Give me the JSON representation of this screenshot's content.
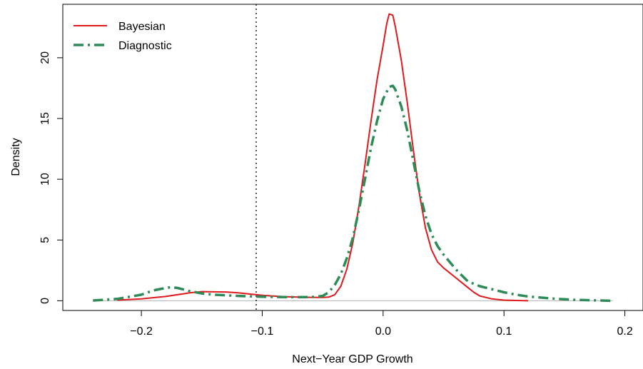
{
  "chart_data": {
    "type": "line",
    "title": "",
    "xlabel": "Next−Year GDP Growth",
    "ylabel": "Density",
    "xlim": [
      -0.265,
      0.215
    ],
    "ylim": [
      -0.8,
      24.4
    ],
    "x_ticks": [
      -0.2,
      -0.1,
      0.0,
      0.1,
      0.2
    ],
    "x_tick_labels": [
      "−0.2",
      "−0.1",
      "0.0",
      "0.1",
      "0.2"
    ],
    "y_ticks": [
      0,
      5,
      10,
      15,
      20
    ],
    "y_tick_labels": [
      "0",
      "5",
      "10",
      "15",
      "20"
    ],
    "grid": false,
    "legend_position": "top-left",
    "reference_lines": {
      "vertical_x": -0.105,
      "horizontal_y": 0
    },
    "colors": {
      "bayesian": "#e0191c",
      "diagnostic": "#2e8b57",
      "baseline": "#b3b3b3"
    },
    "series": [
      {
        "name": "Bayesian",
        "style": "solid",
        "points": [
          [
            -0.22,
            0.05
          ],
          [
            -0.2,
            0.15
          ],
          [
            -0.18,
            0.35
          ],
          [
            -0.16,
            0.65
          ],
          [
            -0.15,
            0.75
          ],
          [
            -0.13,
            0.72
          ],
          [
            -0.12,
            0.65
          ],
          [
            -0.11,
            0.55
          ],
          [
            -0.1,
            0.45
          ],
          [
            -0.09,
            0.38
          ],
          [
            -0.08,
            0.33
          ],
          [
            -0.07,
            0.3
          ],
          [
            -0.06,
            0.28
          ],
          [
            -0.05,
            0.27
          ],
          [
            -0.045,
            0.3
          ],
          [
            -0.04,
            0.5
          ],
          [
            -0.035,
            1.2
          ],
          [
            -0.03,
            2.6
          ],
          [
            -0.025,
            4.8
          ],
          [
            -0.02,
            7.8
          ],
          [
            -0.015,
            11.2
          ],
          [
            -0.01,
            14.8
          ],
          [
            -0.005,
            18.2
          ],
          [
            0.0,
            21.0
          ],
          [
            0.003,
            22.8
          ],
          [
            0.005,
            23.6
          ],
          [
            0.008,
            23.5
          ],
          [
            0.01,
            22.6
          ],
          [
            0.015,
            19.8
          ],
          [
            0.02,
            16.3
          ],
          [
            0.025,
            12.4
          ],
          [
            0.03,
            8.8
          ],
          [
            0.035,
            6.0
          ],
          [
            0.04,
            4.2
          ],
          [
            0.045,
            3.2
          ],
          [
            0.05,
            2.7
          ],
          [
            0.055,
            2.3
          ],
          [
            0.06,
            1.9
          ],
          [
            0.065,
            1.5
          ],
          [
            0.07,
            1.1
          ],
          [
            0.075,
            0.7
          ],
          [
            0.08,
            0.4
          ],
          [
            0.09,
            0.15
          ],
          [
            0.1,
            0.05
          ],
          [
            0.11,
            0.02
          ],
          [
            0.12,
            0.0
          ]
        ]
      },
      {
        "name": "Diagnostic",
        "style": "dotdash",
        "points": [
          [
            -0.24,
            0.02
          ],
          [
            -0.22,
            0.15
          ],
          [
            -0.2,
            0.5
          ],
          [
            -0.19,
            0.85
          ],
          [
            -0.18,
            1.05
          ],
          [
            -0.175,
            1.12
          ],
          [
            -0.17,
            1.05
          ],
          [
            -0.16,
            0.8
          ],
          [
            -0.15,
            0.6
          ],
          [
            -0.14,
            0.5
          ],
          [
            -0.12,
            0.4
          ],
          [
            -0.1,
            0.33
          ],
          [
            -0.08,
            0.3
          ],
          [
            -0.06,
            0.3
          ],
          [
            -0.05,
            0.4
          ],
          [
            -0.045,
            0.7
          ],
          [
            -0.04,
            1.3
          ],
          [
            -0.035,
            2.2
          ],
          [
            -0.03,
            3.5
          ],
          [
            -0.025,
            5.2
          ],
          [
            -0.02,
            7.5
          ],
          [
            -0.015,
            10.0
          ],
          [
            -0.01,
            12.6
          ],
          [
            -0.005,
            14.8
          ],
          [
            0.0,
            16.6
          ],
          [
            0.005,
            17.6
          ],
          [
            0.008,
            17.7
          ],
          [
            0.01,
            17.4
          ],
          [
            0.015,
            16.0
          ],
          [
            0.02,
            14.0
          ],
          [
            0.025,
            11.5
          ],
          [
            0.03,
            9.0
          ],
          [
            0.035,
            7.0
          ],
          [
            0.04,
            5.5
          ],
          [
            0.045,
            4.5
          ],
          [
            0.05,
            3.8
          ],
          [
            0.055,
            3.2
          ],
          [
            0.06,
            2.6
          ],
          [
            0.065,
            2.1
          ],
          [
            0.07,
            1.6
          ],
          [
            0.08,
            1.2
          ],
          [
            0.09,
            0.95
          ],
          [
            0.1,
            0.7
          ],
          [
            0.11,
            0.5
          ],
          [
            0.12,
            0.35
          ],
          [
            0.14,
            0.18
          ],
          [
            0.16,
            0.07
          ],
          [
            0.18,
            0.02
          ],
          [
            0.19,
            0.0
          ]
        ]
      }
    ]
  }
}
